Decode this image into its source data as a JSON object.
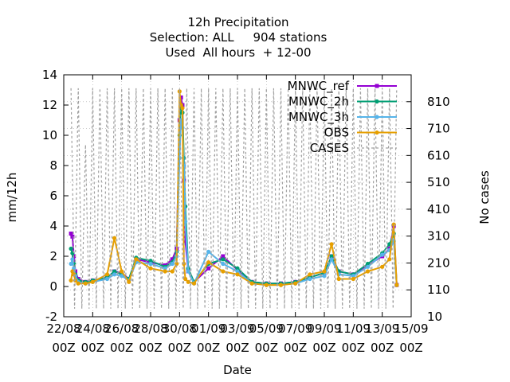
{
  "title_lines": [
    "12h Precipitation",
    "Selection: ALL     904 stations",
    "Used  All hours  + 12-00"
  ],
  "chart_data": {
    "type": "line",
    "xlabel": "Date",
    "ylabel": "mm/12h",
    "y2label": "No cases",
    "xlim": [
      0,
      24
    ],
    "ylim": [
      -2,
      14
    ],
    "y2lim": [
      10,
      910
    ],
    "xticks": [
      {
        "x": 0,
        "top": "22/08",
        "bottom": "00Z"
      },
      {
        "x": 2,
        "top": "24/08",
        "bottom": "00Z"
      },
      {
        "x": 4,
        "top": "26/08",
        "bottom": "00Z"
      },
      {
        "x": 6,
        "top": "28/08",
        "bottom": "00Z"
      },
      {
        "x": 8,
        "top": "30/08",
        "bottom": "00Z"
      },
      {
        "x": 10,
        "top": "01/09",
        "bottom": "00Z"
      },
      {
        "x": 12,
        "top": "03/09",
        "bottom": "00Z"
      },
      {
        "x": 14,
        "top": "05/09",
        "bottom": "00Z"
      },
      {
        "x": 16,
        "top": "07/09",
        "bottom": "00Z"
      },
      {
        "x": 18,
        "top": "09/09",
        "bottom": "00Z"
      },
      {
        "x": 20,
        "top": "11/09",
        "bottom": "00Z"
      },
      {
        "x": 22,
        "top": "13/09",
        "bottom": "00Z"
      },
      {
        "x": 24,
        "top": "15/09",
        "bottom": "00Z"
      }
    ],
    "yticks": [
      -2,
      0,
      2,
      4,
      6,
      8,
      10,
      12,
      14
    ],
    "y2ticks": [
      10,
      110,
      210,
      310,
      410,
      510,
      610,
      710,
      810
    ],
    "legend": {
      "placement": "top-right"
    },
    "series": [
      {
        "name": "MNWC_ref",
        "color": "#9400d3",
        "axis": "y",
        "marker": "square",
        "x": [
          0.5,
          0.6,
          0.7,
          0.8,
          1.0,
          1.5,
          2.0,
          3.0,
          3.5,
          4.0,
          4.5,
          5.0,
          6.0,
          7.0,
          7.5,
          7.8,
          8.0,
          8.1,
          8.2,
          8.3,
          8.4,
          8.6,
          9.0,
          10.0,
          11.0,
          12.0,
          13.0,
          14.0,
          15.0,
          16.0,
          17.0,
          18.0,
          18.5,
          19.0,
          20.0,
          21.0,
          22.0,
          22.5,
          22.8,
          23.0
        ],
        "y": [
          3.5,
          3.3,
          2.0,
          1.0,
          0.5,
          0.3,
          0.4,
          0.6,
          1.0,
          0.9,
          0.5,
          1.8,
          1.6,
          1.4,
          1.8,
          2.5,
          11.0,
          12.5,
          12.0,
          7.0,
          3.0,
          1.0,
          0.3,
          1.2,
          2.0,
          1.1,
          0.3,
          0.2,
          0.2,
          0.3,
          0.6,
          0.9,
          2.0,
          1.0,
          0.8,
          1.4,
          2.0,
          2.5,
          4.0,
          0.1
        ]
      },
      {
        "name": "MNWC_2h",
        "color": "#009e73",
        "axis": "y",
        "marker": "circle",
        "x": [
          0.5,
          0.6,
          0.7,
          0.8,
          1.0,
          1.5,
          2.0,
          3.0,
          3.5,
          4.0,
          4.5,
          5.0,
          6.0,
          7.0,
          7.5,
          7.8,
          8.0,
          8.1,
          8.2,
          8.3,
          8.4,
          8.6,
          9.0,
          10.0,
          11.0,
          12.0,
          13.0,
          14.0,
          15.0,
          16.0,
          17.0,
          18.0,
          18.5,
          19.0,
          20.0,
          21.0,
          22.0,
          22.5,
          22.8,
          23.0
        ],
        "y": [
          2.5,
          2.2,
          1.5,
          0.8,
          0.4,
          0.3,
          0.4,
          0.6,
          1.0,
          0.8,
          0.5,
          1.9,
          1.7,
          1.3,
          1.6,
          2.3,
          10.0,
          12.0,
          11.5,
          8.5,
          5.3,
          1.2,
          0.3,
          1.5,
          1.8,
          1.2,
          0.3,
          0.2,
          0.2,
          0.3,
          0.6,
          0.9,
          2.0,
          1.0,
          0.8,
          1.5,
          2.2,
          2.8,
          3.5,
          0.1
        ]
      },
      {
        "name": "MNWC_3h",
        "color": "#56b4e9",
        "axis": "y",
        "marker": "circle",
        "x": [
          0.5,
          0.6,
          0.7,
          0.8,
          1.0,
          1.5,
          2.0,
          3.0,
          3.5,
          4.0,
          4.5,
          5.0,
          6.0,
          7.0,
          7.5,
          7.8,
          8.0,
          8.1,
          8.2,
          8.3,
          8.4,
          8.6,
          9.0,
          10.0,
          11.0,
          12.0,
          13.0,
          14.0,
          15.0,
          16.0,
          17.0,
          18.0,
          18.5,
          19.0,
          20.0,
          21.0,
          22.0,
          22.5,
          22.8,
          23.0
        ],
        "y": [
          1.5,
          1.8,
          1.2,
          0.7,
          0.3,
          0.2,
          0.3,
          0.5,
          0.8,
          0.7,
          0.4,
          1.6,
          1.5,
          1.2,
          1.5,
          2.0,
          8.5,
          11.0,
          10.5,
          8.0,
          4.3,
          1.0,
          0.2,
          2.3,
          1.5,
          1.0,
          0.2,
          0.1,
          0.1,
          0.2,
          0.5,
          0.7,
          1.8,
          0.8,
          0.7,
          1.3,
          2.1,
          2.4,
          3.0,
          0.1
        ]
      },
      {
        "name": "OBS",
        "color": "#e69f00",
        "axis": "y",
        "marker": "circle",
        "x": [
          0.5,
          0.6,
          0.7,
          0.8,
          1.0,
          1.5,
          2.0,
          3.0,
          3.5,
          4.0,
          4.5,
          5.0,
          6.0,
          7.0,
          7.5,
          7.8,
          8.0,
          8.1,
          8.2,
          8.3,
          8.4,
          8.6,
          9.0,
          10.0,
          11.0,
          12.0,
          13.0,
          14.0,
          15.0,
          16.0,
          17.0,
          18.0,
          18.5,
          19.0,
          20.0,
          21.0,
          22.0,
          22.5,
          22.8,
          23.0
        ],
        "y": [
          0.4,
          1.0,
          0.8,
          0.4,
          0.2,
          0.2,
          0.3,
          0.8,
          3.2,
          1.0,
          0.3,
          1.8,
          1.2,
          1.0,
          1.0,
          1.5,
          12.9,
          12.0,
          11.8,
          1.5,
          0.5,
          0.3,
          0.2,
          1.6,
          1.0,
          0.8,
          0.2,
          0.1,
          0.1,
          0.2,
          0.8,
          1.0,
          2.8,
          0.5,
          0.5,
          1.0,
          1.3,
          1.8,
          4.1,
          0.1
        ]
      },
      {
        "name": "CASES",
        "color": "#a0a0a0",
        "axis": "y2",
        "dashed": true,
        "x": [
          0.5,
          0.75,
          1.0,
          1.25,
          1.5,
          1.75,
          2.0,
          2.25,
          2.5,
          2.75,
          3.0,
          3.25,
          3.5,
          3.75,
          4.0,
          4.25,
          4.5,
          4.75,
          5.0,
          5.25,
          5.5,
          5.75,
          6.0,
          6.25,
          6.5,
          6.75,
          7.0,
          7.25,
          7.5,
          7.75,
          8.0,
          8.25,
          8.5,
          8.75,
          9.0,
          9.25,
          9.5,
          9.75,
          10.0,
          10.25,
          10.5,
          10.75,
          11.0,
          11.25,
          11.5,
          11.75,
          12.0,
          12.25,
          12.5,
          12.75,
          13.0,
          13.25,
          13.5,
          13.75,
          14.0,
          14.25,
          14.5,
          14.75,
          15.0,
          15.25,
          15.5,
          15.75,
          16.0,
          16.25,
          16.5,
          16.75,
          17.0,
          17.25,
          17.5,
          17.75,
          18.0,
          18.25,
          18.5,
          18.75,
          19.0,
          19.25,
          19.5,
          19.75,
          20.0,
          20.25,
          20.5,
          20.75,
          21.0,
          21.25,
          21.5,
          21.75,
          22.0,
          22.25,
          22.5,
          22.75,
          23.0
        ],
        "y": [
          860,
          40,
          860,
          40,
          650,
          40,
          860,
          40,
          860,
          40,
          860,
          40,
          860,
          40,
          860,
          40,
          860,
          40,
          860,
          40,
          860,
          40,
          860,
          40,
          860,
          40,
          860,
          40,
          860,
          40,
          860,
          40,
          860,
          40,
          860,
          40,
          860,
          40,
          860,
          40,
          860,
          40,
          860,
          40,
          860,
          40,
          860,
          40,
          860,
          40,
          860,
          40,
          860,
          40,
          860,
          40,
          860,
          40,
          860,
          40,
          860,
          40,
          860,
          40,
          860,
          40,
          860,
          40,
          860,
          40,
          860,
          40,
          860,
          40,
          860,
          40,
          860,
          40,
          860,
          40,
          860,
          40,
          860,
          40,
          860,
          40,
          860,
          40,
          860,
          40,
          860
        ]
      }
    ]
  }
}
